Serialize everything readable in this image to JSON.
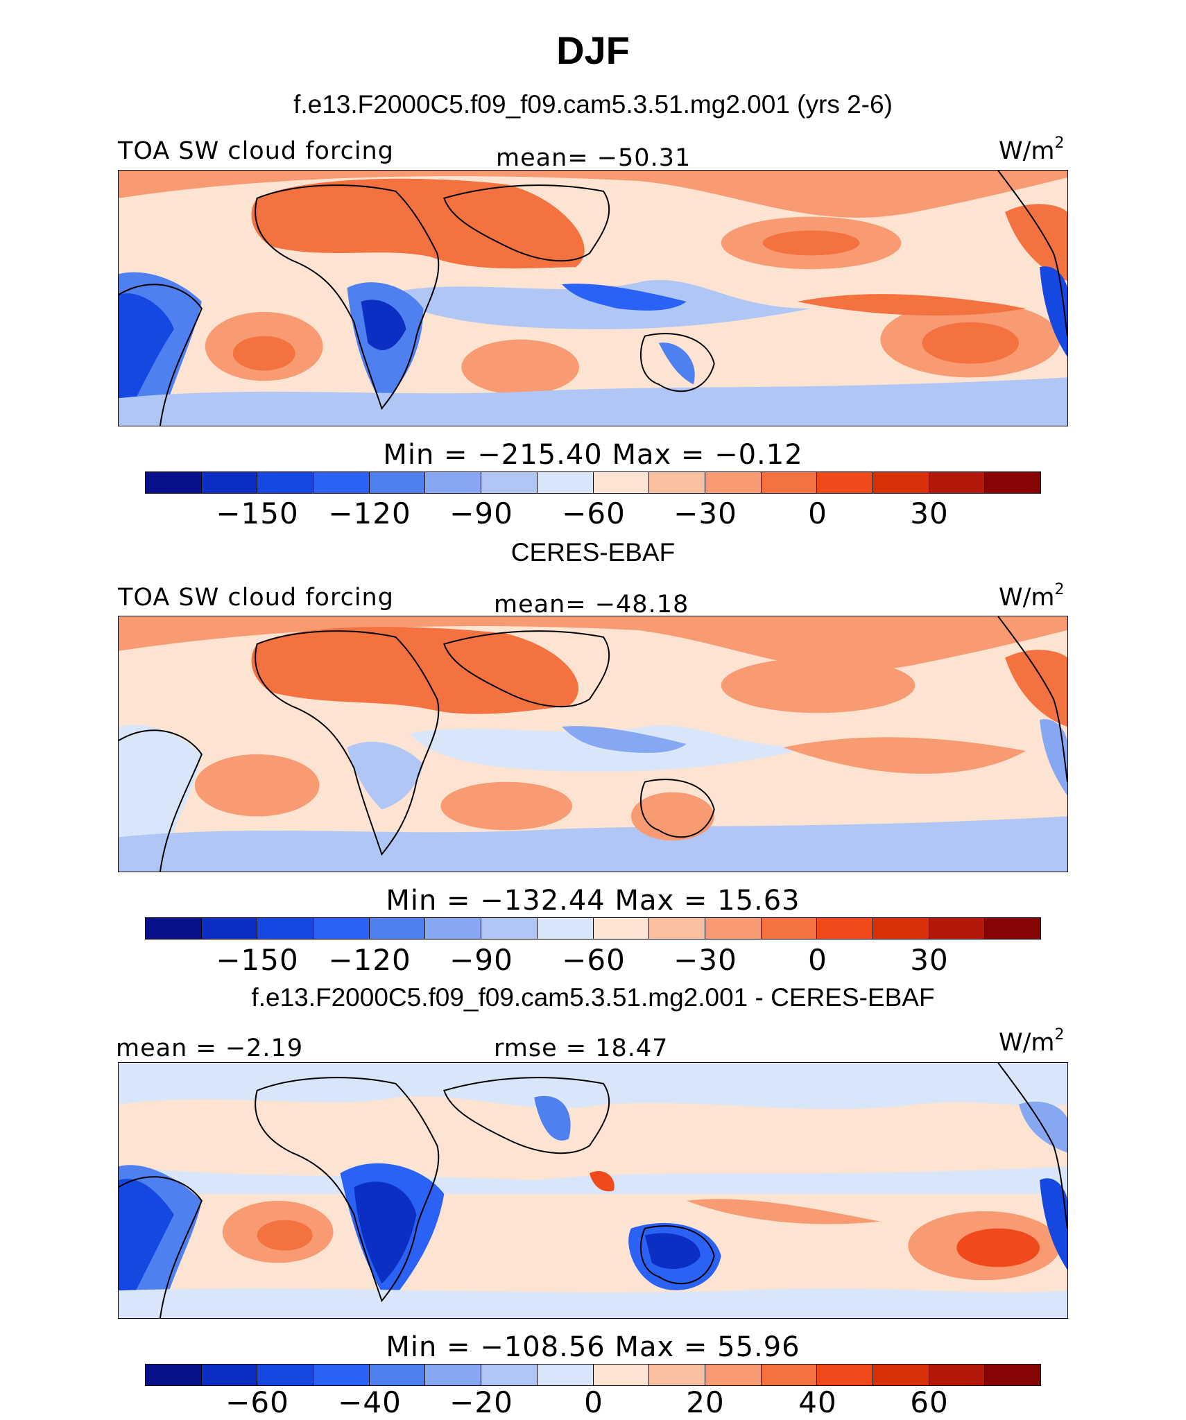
{
  "page": {
    "title": "DJF"
  },
  "palette": [
    "#08118a",
    "#0b2fc2",
    "#1448e0",
    "#2a62f5",
    "#4f80f0",
    "#86a8f2",
    "#b0c6f5",
    "#d9e6fa",
    "#fde3d2",
    "#fbc0a0",
    "#f89a72",
    "#f4723f",
    "#f04a1c",
    "#d83008",
    "#b3190a",
    "#880505"
  ],
  "panels": [
    {
      "heading": "f.e13.F2000C5.f09_f09.cam5.3.51.mg2.001 (yrs 2-6)",
      "left_label": "TOA SW cloud forcing",
      "center_label": "mean=  −50.31",
      "units": "W/m",
      "units_sup": "2",
      "minmax": "Min  =  −215.40  Max  =    −0.12",
      "ticks": [
        "−150",
        "−120",
        "−90",
        "−60",
        "−30",
        "0",
        "30"
      ]
    },
    {
      "heading": "CERES-EBAF",
      "left_label": "TOA SW cloud forcing",
      "center_label": "mean=  −48.18",
      "units": "W/m",
      "units_sup": "2",
      "minmax": "Min  =  −132.44  Max  =    15.63",
      "ticks": [
        "−150",
        "−120",
        "−90",
        "−60",
        "−30",
        "0",
        "30"
      ]
    },
    {
      "heading": "f.e13.F2000C5.f09_f09.cam5.3.51.mg2.001 - CERES-EBAF",
      "left_label": "mean  =   −2.19",
      "center_label": "rmse  =   18.47",
      "units": "W/m",
      "units_sup": "2",
      "minmax": "Min  =  −108.56  Max  =    55.96",
      "ticks": [
        "−60",
        "−40",
        "−20",
        "0",
        "20",
        "40",
        "60"
      ]
    }
  ]
}
